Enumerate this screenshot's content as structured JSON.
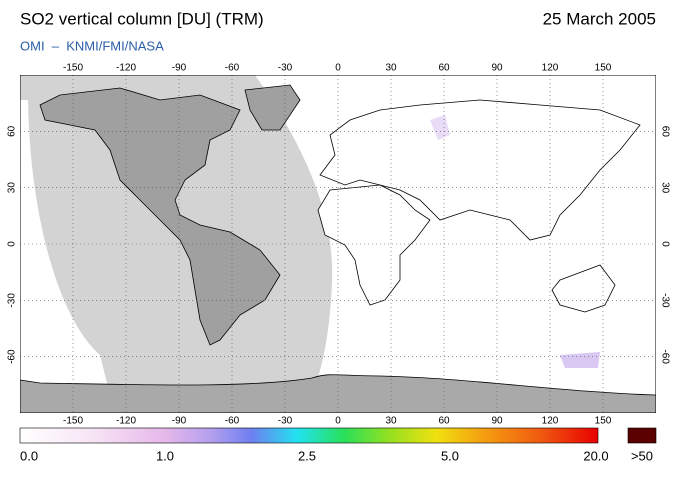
{
  "header": {
    "title": "SO2 vertical column [DU] (TRM)",
    "date": "25 March 2005",
    "credit": "OMI  –  KNMI/FMI/NASA"
  },
  "map": {
    "lon_ticks": [
      -150,
      -120,
      -90,
      -60,
      -30,
      0,
      30,
      60,
      90,
      120,
      150
    ],
    "lat_ticks": [
      60,
      30,
      0,
      -30,
      -60
    ]
  },
  "colorbar": {
    "labels": [
      "0.0",
      "1.0",
      "2.5",
      "5.0",
      "20.0"
    ],
    "overflow_label": ">50"
  }
}
